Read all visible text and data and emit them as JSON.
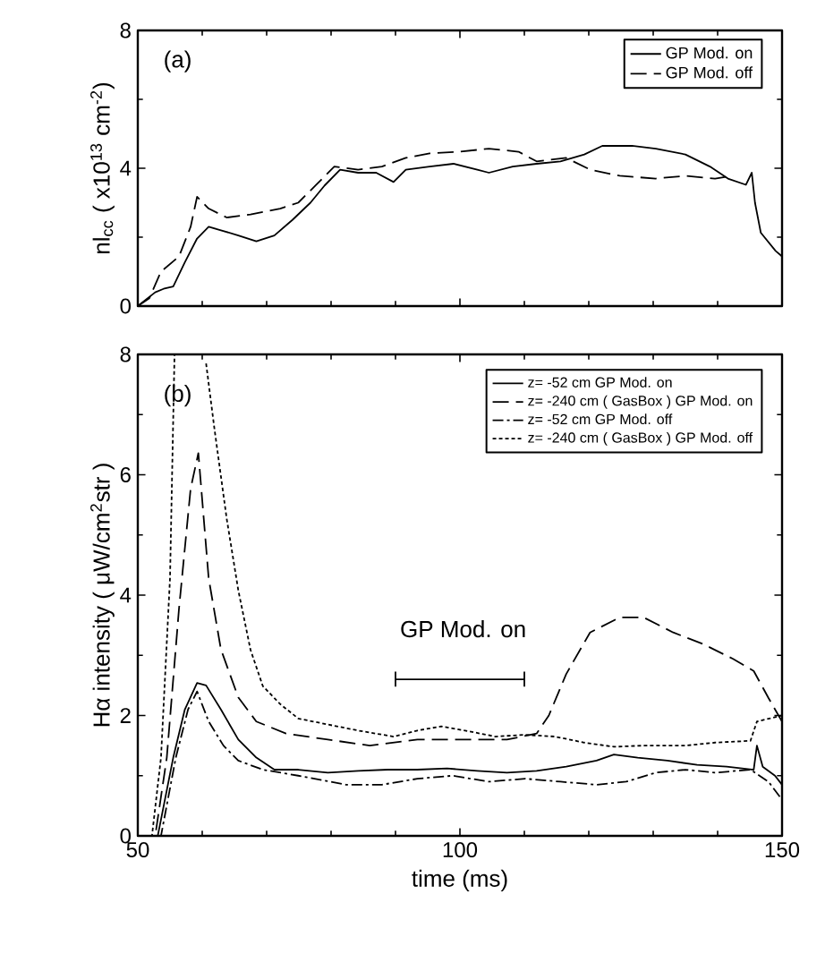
{
  "chart_data": [
    {
      "type": "line",
      "ylabel": "nl$_{cc}$ ( x10$^{13}$ cm$^{-2}$)",
      "annotations": [
        "(a)"
      ],
      "xlim": [
        50,
        150
      ],
      "xticks": [
        50,
        100,
        150
      ],
      "ylim": [
        0,
        8
      ],
      "yticks": [
        0,
        4,
        8
      ],
      "tick_labels": "y",
      "legend": "top right",
      "marker": "none",
      "series": [
        {
          "name": "GP Mod.  on",
          "color": "#000000",
          "line_style": "solid",
          "x": [
            50,
            52.7,
            54,
            55.5,
            57.3,
            59.2,
            61,
            62.9,
            65.6,
            68.4,
            71.2,
            74,
            76.8,
            79,
            81.4,
            84.2,
            87,
            89.7,
            91.6,
            95.3,
            99,
            102.7,
            104.5,
            108.2,
            111.9,
            115.6,
            119.3,
            122.1,
            126.7,
            130.4,
            135,
            138.8,
            141.6,
            144.4,
            145.3,
            145.8,
            146.7,
            149,
            150
          ],
          "values": [
            0,
            0.4,
            0.5,
            0.57,
            1.27,
            1.96,
            2.3,
            2.2,
            2.05,
            1.88,
            2.05,
            2.5,
            3.0,
            3.5,
            3.96,
            3.87,
            3.87,
            3.6,
            3.96,
            4.05,
            4.13,
            3.96,
            3.87,
            4.05,
            4.13,
            4.2,
            4.4,
            4.65,
            4.65,
            4.57,
            4.4,
            4.05,
            3.7,
            3.52,
            3.87,
            3.0,
            2.13,
            1.6,
            1.44
          ]
        },
        {
          "name": "GP Mod.  off",
          "color": "#000000",
          "line_style": "dashed",
          "x": [
            50,
            51.8,
            53.6,
            56.4,
            58.2,
            59.2,
            61,
            63.8,
            67.5,
            72.1,
            74.9,
            77.7,
            80.5,
            84.2,
            87.9,
            91.6,
            95.3,
            99.9,
            104.5,
            109.1,
            111.9,
            116.5,
            120.2,
            124.8,
            130.4,
            135,
            139.6,
            142.4
          ],
          "values": [
            0,
            0.23,
            1.0,
            1.44,
            2.3,
            3.17,
            2.83,
            2.57,
            2.66,
            2.83,
            3.0,
            3.52,
            4.05,
            3.96,
            4.05,
            4.3,
            4.43,
            4.48,
            4.57,
            4.48,
            4.2,
            4.3,
            3.96,
            3.78,
            3.7,
            3.78,
            3.7,
            3.78
          ]
        }
      ]
    },
    {
      "type": "line",
      "xlabel": "time (ms)",
      "ylabel": "Hα intensity ( μW/cm$^{2}$str )",
      "annotations": [
        "(b)",
        "GP Mod.  on"
      ],
      "xlim": [
        50,
        150
      ],
      "xticks": [
        50,
        100,
        150
      ],
      "ylim": [
        0,
        8
      ],
      "yticks": [
        0,
        2,
        4,
        6,
        8
      ],
      "legend": "top right",
      "marker": "none",
      "series": [
        {
          "name": "z= -52  cm                            GP Mod.  on",
          "color": "#000000",
          "line_style": "solid",
          "x": [
            50,
            53.1,
            55.5,
            57.3,
            59.2,
            60.6,
            62.9,
            65.6,
            68.4,
            71.2,
            74.9,
            79.5,
            84.2,
            88.8,
            93.4,
            98,
            102.7,
            107.3,
            111.9,
            116.5,
            121.2,
            123.9,
            127.6,
            132.2,
            136.8,
            141.4,
            145.6,
            146.1,
            147,
            148.9,
            150
          ],
          "values": [
            0,
            0,
            1.3,
            2.1,
            2.54,
            2.5,
            2.1,
            1.6,
            1.3,
            1.1,
            1.1,
            1.05,
            1.08,
            1.1,
            1.1,
            1.12,
            1.08,
            1.05,
            1.08,
            1.15,
            1.25,
            1.35,
            1.3,
            1.25,
            1.18,
            1.15,
            1.1,
            1.5,
            1.15,
            1.0,
            0.85
          ]
        },
        {
          "name": "z= -240 cm ( GasBox ) GP Mod.  on",
          "color": "#000000",
          "line_style": "dashed",
          "x": [
            50,
            52.7,
            54.5,
            56.4,
            58.2,
            59.4,
            61,
            62.9,
            65.6,
            68.4,
            73,
            79.5,
            86,
            93.4,
            100.8,
            107.3,
            111.9,
            113.8,
            116.5,
            120.2,
            124.8,
            128.5,
            133.1,
            137.7,
            142.4,
            145.6,
            147.9,
            150
          ],
          "values": [
            0,
            0,
            1.3,
            3.78,
            5.77,
            6.36,
            4.28,
            3.1,
            2.3,
            1.9,
            1.7,
            1.6,
            1.5,
            1.6,
            1.6,
            1.6,
            1.7,
            2.0,
            2.69,
            3.38,
            3.63,
            3.63,
            3.38,
            3.19,
            2.94,
            2.74,
            2.29,
            1.9
          ]
        },
        {
          "name": "z= -52  cm                            GP Mod.  off",
          "color": "#000000",
          "line_style": "dashdot",
          "x": [
            50,
            53.6,
            55.9,
            57.8,
            59.2,
            61,
            63.3,
            65.6,
            69.4,
            74.9,
            82.3,
            87.9,
            93.4,
            98.9,
            104.5,
            110.1,
            115.6,
            121.2,
            125.8,
            130.4,
            135,
            139.6,
            145.1,
            147.9,
            150
          ],
          "values": [
            0,
            0,
            1.3,
            2.1,
            2.4,
            1.9,
            1.5,
            1.25,
            1.1,
            1.0,
            0.85,
            0.85,
            0.95,
            1.0,
            0.9,
            0.95,
            0.9,
            0.85,
            0.9,
            1.05,
            1.1,
            1.05,
            1.1,
            0.9,
            0.6
          ]
        },
        {
          "name": "z= -240 cm ( GasBox ) GP Mod.  off",
          "color": "#000000",
          "line_style": "dotted",
          "x": [
            50,
            52.2,
            53.6,
            55,
            55.7,
            58,
            60.6,
            61.9,
            63.8,
            65.6,
            67.5,
            69.4,
            72.1,
            74.9,
            79.5,
            84.2,
            89.7,
            93.4,
            97.1,
            100.8,
            105.5,
            110.1,
            114.7,
            119.3,
            123.9,
            128.5,
            135,
            139.6,
            145.1,
            146.1,
            150
          ],
          "values": [
            0,
            0,
            1.3,
            4.28,
            8,
            null,
            7.85,
            6.76,
            5.27,
            4.08,
            3.09,
            2.49,
            2.19,
            1.95,
            1.85,
            1.75,
            1.65,
            1.75,
            1.82,
            1.75,
            1.65,
            1.68,
            1.65,
            1.55,
            1.48,
            1.5,
            1.5,
            1.55,
            1.58,
            1.9,
            2.0
          ]
        },
        {
          "color": "#000000",
          "line_style": "solid",
          "x": [
            90,
            90,
            90,
            110,
            110,
            110
          ],
          "values": [
            2.48,
            2.72,
            2.6,
            2.6,
            2.72,
            2.48
          ]
        }
      ]
    }
  ]
}
